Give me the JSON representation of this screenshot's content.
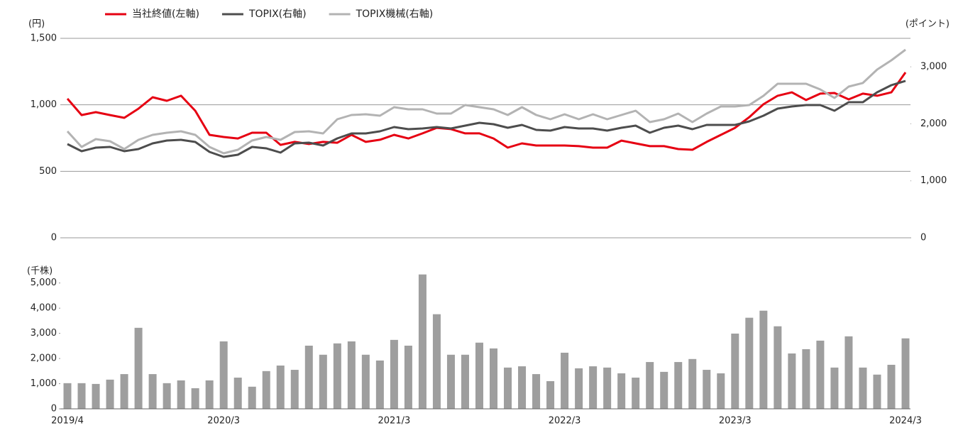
{
  "chart_data": [
    {
      "type": "line",
      "ylabel": "(円)",
      "y2label": "(ポイント)",
      "ylim": [
        0,
        1500
      ],
      "yticks": [
        0,
        500,
        {
          "value": 1000,
          "label": "1,000"
        },
        {
          "value": 1500,
          "label": "1,500"
        }
      ],
      "y2lim": [
        0,
        3500
      ],
      "y2ticks": [
        0,
        {
          "value": 1000,
          "label": "1,000"
        },
        {
          "value": 2000,
          "label": "2,000"
        },
        {
          "value": 3000,
          "label": "3,000"
        }
      ],
      "grid": true,
      "series": [
        {
          "name": "当社終値(左軸)",
          "color": "#e60012",
          "values": [
            1046,
            923,
            945,
            923,
            902,
            971,
            1057,
            1030,
            1068,
            955,
            774,
            758,
            747,
            790,
            790,
            699,
            721,
            705,
            721,
            715,
            774,
            721,
            737,
            774,
            747,
            785,
            827,
            817,
            785,
            785,
            747,
            678,
            710,
            694,
            694,
            694,
            689,
            678,
            678,
            731,
            710,
            689,
            689,
            667,
            662,
            721,
            774,
            827,
            907,
            1004,
            1068,
            1094,
            1036,
            1084,
            1089,
            1041,
            1084,
            1068,
            1094,
            1244
          ]
        },
        {
          "name": "TOPIX(右軸)",
          "color": "#4d4d4d",
          "axis": "y2",
          "values": [
            1644,
            1520,
            1582,
            1594,
            1520,
            1557,
            1657,
            1706,
            1719,
            1682,
            1507,
            1420,
            1457,
            1594,
            1569,
            1495,
            1657,
            1669,
            1619,
            1744,
            1831,
            1831,
            1868,
            1943,
            1906,
            1918,
            1943,
            1918,
            1968,
            2018,
            1993,
            1931,
            1981,
            1893,
            1881,
            1943,
            1918,
            1918,
            1881,
            1931,
            1968,
            1843,
            1931,
            1968,
            1906,
            1981,
            1981,
            1981,
            2043,
            2142,
            2267,
            2304,
            2329,
            2329,
            2230,
            2379,
            2379,
            2554,
            2678,
            2753
          ]
        },
        {
          "name": "TOPIX機械(右軸)",
          "color": "#b3b3b3",
          "axis": "y2",
          "values": [
            1868,
            1594,
            1731,
            1694,
            1557,
            1719,
            1806,
            1843,
            1868,
            1806,
            1594,
            1482,
            1545,
            1706,
            1769,
            1719,
            1856,
            1868,
            1831,
            2080,
            2155,
            2167,
            2142,
            2292,
            2254,
            2254,
            2180,
            2180,
            2329,
            2292,
            2254,
            2155,
            2292,
            2155,
            2080,
            2167,
            2080,
            2167,
            2080,
            2155,
            2230,
            2030,
            2080,
            2180,
            2030,
            2180,
            2304,
            2304,
            2329,
            2491,
            2703,
            2703,
            2703,
            2603,
            2454,
            2653,
            2716,
            2952,
            3114,
            3301
          ]
        }
      ]
    },
    {
      "type": "bar",
      "ylabel": "(千株)",
      "ylim": [
        0,
        5500
      ],
      "yticks": [
        0,
        {
          "value": 1000,
          "label": "1,000"
        },
        {
          "value": 2000,
          "label": "2,000"
        },
        {
          "value": 3000,
          "label": "3,000"
        },
        {
          "value": 4000,
          "label": "4,000"
        },
        {
          "value": 5000,
          "label": "5,000"
        }
      ],
      "color": "#9e9e9e",
      "categories": [
        "2019/4",
        null,
        null,
        null,
        null,
        null,
        null,
        null,
        null,
        null,
        null,
        "2020/3",
        null,
        null,
        null,
        null,
        null,
        null,
        null,
        null,
        null,
        null,
        null,
        "2021/3",
        null,
        null,
        null,
        null,
        null,
        null,
        null,
        null,
        null,
        null,
        null,
        "2022/3",
        null,
        null,
        null,
        null,
        null,
        null,
        null,
        null,
        null,
        null,
        null,
        "2023/3",
        null,
        null,
        null,
        null,
        null,
        null,
        null,
        null,
        null,
        null,
        null,
        "2024/3"
      ],
      "values": [
        1020,
        1020,
        990,
        1160,
        1380,
        3220,
        1380,
        1020,
        1130,
        820,
        1130,
        2680,
        1240,
        880,
        1500,
        1720,
        1550,
        2510,
        2150,
        2600,
        2680,
        2150,
        1920,
        2740,
        2510,
        5340,
        3760,
        2150,
        2150,
        2630,
        2400,
        1640,
        1690,
        1380,
        1100,
        2230,
        1610,
        1690,
        1640,
        1410,
        1240,
        1860,
        1470,
        1860,
        1980,
        1550,
        1410,
        2990,
        3620,
        3900,
        3280,
        2200,
        2370,
        2710,
        1640,
        2880,
        1640,
        1360,
        1750,
        2800
      ]
    }
  ]
}
